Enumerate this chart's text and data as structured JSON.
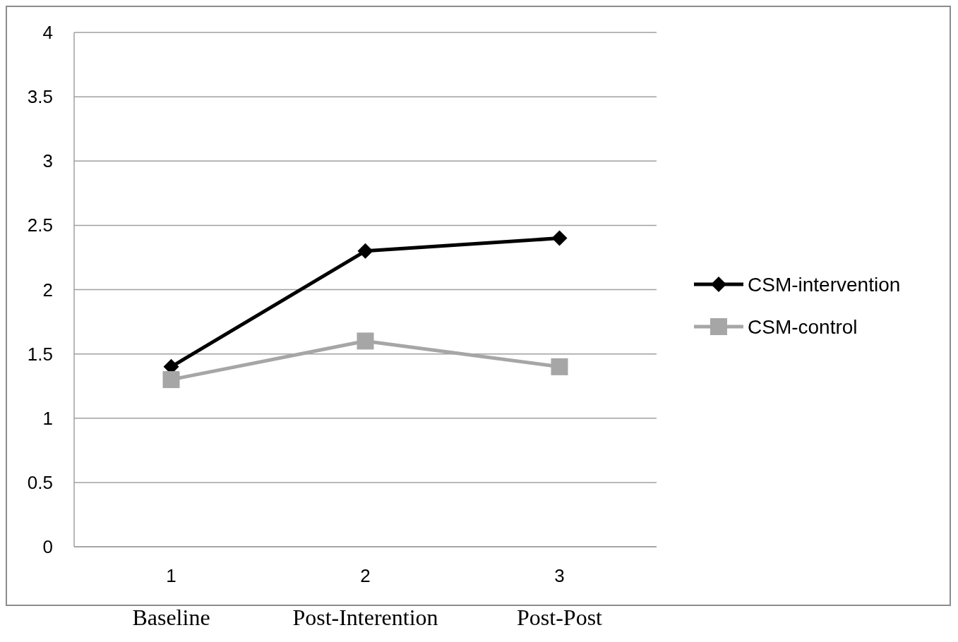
{
  "chart_data": {
    "type": "line",
    "categories": [
      "1",
      "2",
      "3"
    ],
    "series": [
      {
        "name": "CSM-intervention",
        "color": "#000000",
        "marker": "diamond",
        "values": [
          1.4,
          2.3,
          2.4
        ]
      },
      {
        "name": "CSM-control",
        "color": "#a6a6a6",
        "marker": "square",
        "values": [
          1.3,
          1.6,
          1.4
        ]
      }
    ],
    "ylim": [
      0,
      4
    ],
    "yticks": [
      0,
      0.5,
      1,
      1.5,
      2,
      2.5,
      3,
      3.5,
      4
    ],
    "grid": "y",
    "legend": "right",
    "annotations": [
      "Baseline",
      "Post-Interention",
      "Post-Post"
    ]
  }
}
